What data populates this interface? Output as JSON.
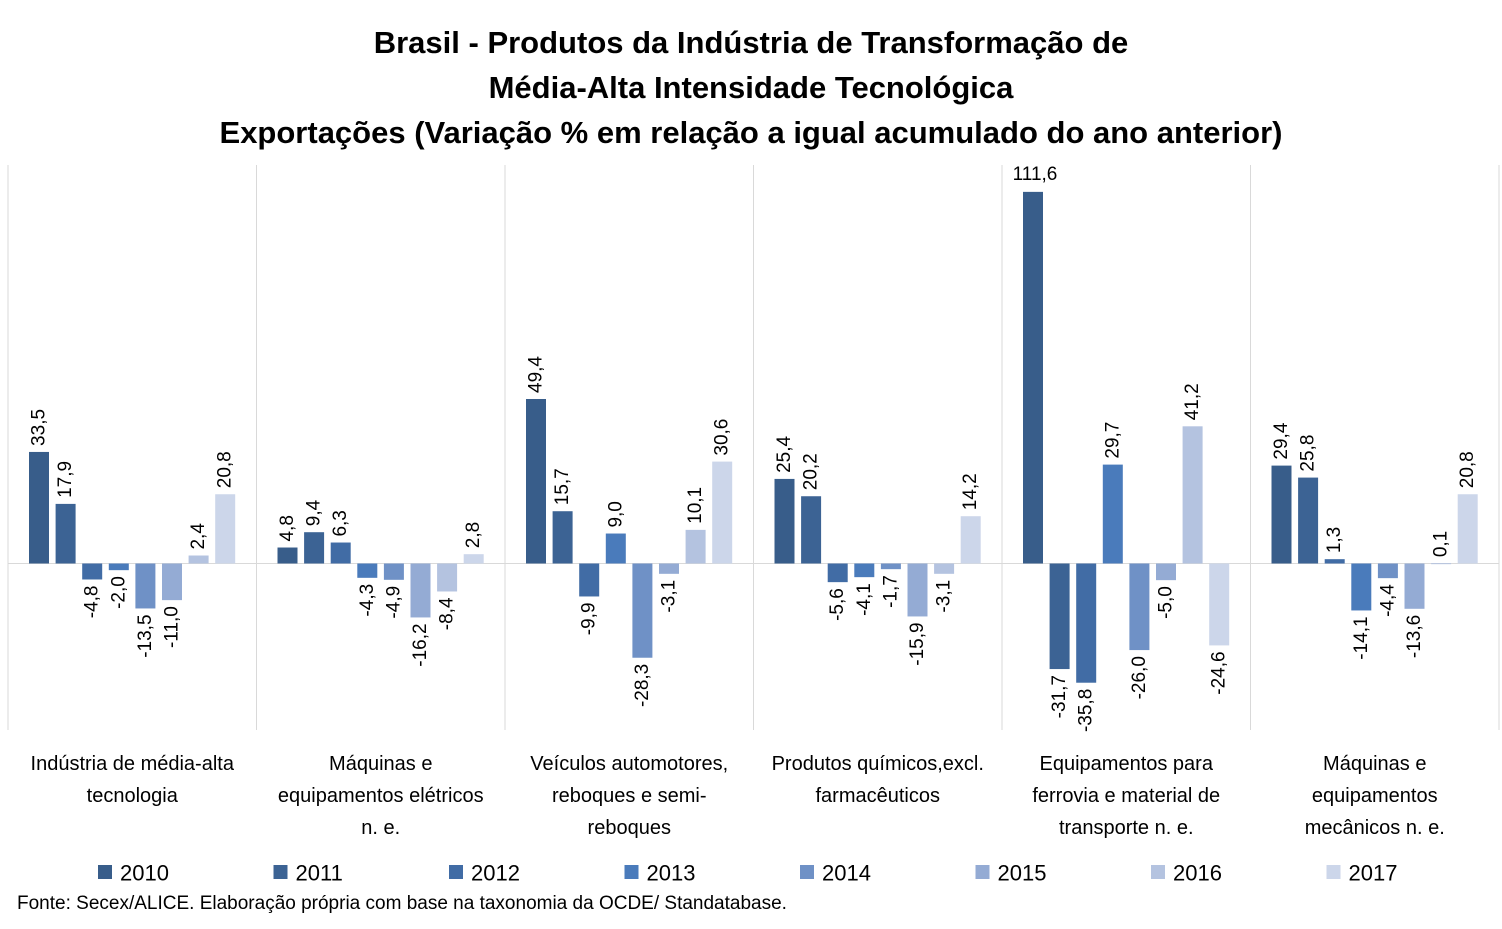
{
  "chart_data": {
    "type": "bar",
    "title_lines": [
      "Brasil - Produtos da Indústria de Transformação de",
      "Média-Alta Intensidade Tecnológica",
      "Exportações (Variação % em relação a igual acumulado do ano anterior)"
    ],
    "categories": [
      [
        "Indústria de média-alta",
        "tecnologia"
      ],
      [
        "Máquinas e",
        "equipamentos elétricos",
        "n. e."
      ],
      [
        "Veículos automotores,",
        "reboques e semi-",
        "reboques"
      ],
      [
        "Produtos químicos,excl.",
        "farmacêuticos"
      ],
      [
        "Equipamentos para",
        "ferrovia e material de",
        "transporte n. e."
      ],
      [
        "Máquinas e",
        "equipamentos",
        "mecânicos  n. e."
      ]
    ],
    "series": [
      {
        "name": "2010",
        "color": "#385d8a",
        "values": [
          33.5,
          4.8,
          49.4,
          25.4,
          111.6,
          29.4
        ]
      },
      {
        "name": "2011",
        "color": "#3c6394",
        "values": [
          17.9,
          9.4,
          15.7,
          20.2,
          -31.7,
          25.8
        ]
      },
      {
        "name": "2012",
        "color": "#416ca5",
        "values": [
          -4.8,
          6.3,
          -9.9,
          -5.6,
          -35.8,
          1.3
        ]
      },
      {
        "name": "2013",
        "color": "#4a7bbb",
        "values": [
          -2.0,
          -4.3,
          9.0,
          -4.1,
          29.7,
          -14.1
        ]
      },
      {
        "name": "2014",
        "color": "#6f91c6",
        "values": [
          -13.5,
          -4.9,
          -28.3,
          -1.7,
          -26.0,
          -4.4
        ]
      },
      {
        "name": "2015",
        "color": "#94abd4",
        "values": [
          -11.0,
          -16.2,
          -3.1,
          -15.9,
          -5.0,
          -13.6
        ]
      },
      {
        "name": "2016",
        "color": "#b4c3e0",
        "values": [
          2.4,
          -8.4,
          10.1,
          -3.1,
          41.2,
          0.1
        ]
      },
      {
        "name": "2017",
        "color": "#ccd6ea",
        "values": [
          20.8,
          2.8,
          30.6,
          14.2,
          -24.6,
          20.8
        ]
      }
    ],
    "value_labels": [
      [
        "33,5",
        "4,8",
        "49,4",
        "25,4",
        "111,6",
        "29,4"
      ],
      [
        "17,9",
        "9,4",
        "15,7",
        "20,2",
        "-31,7",
        "25,8"
      ],
      [
        "-4,8",
        "6,3",
        "-9,9",
        "-5,6",
        "-35,8",
        "1,3"
      ],
      [
        "-2,0",
        "-4,3",
        "9,0",
        "-4,1",
        "29,7",
        "-14,1"
      ],
      [
        "-13,5",
        "-4,9",
        "-28,3",
        "-1,7",
        "-26,0",
        "-4,4"
      ],
      [
        "-11,0",
        "-16,2",
        "-3,1",
        "-15,9",
        "-5,0",
        "-13,6"
      ],
      [
        "2,4",
        "-8,4",
        "10,1",
        "-3,1",
        "41,2",
        "0,1"
      ],
      [
        "20,8",
        "2,8",
        "30,6",
        "14,2",
        "-24,6",
        "20,8"
      ]
    ],
    "grid": false,
    "legend_position": "bottom"
  },
  "source_note": "Fonte: Secex/ALICE. Elaboração própria com base na taxonomia da OCDE/ Standatabase."
}
